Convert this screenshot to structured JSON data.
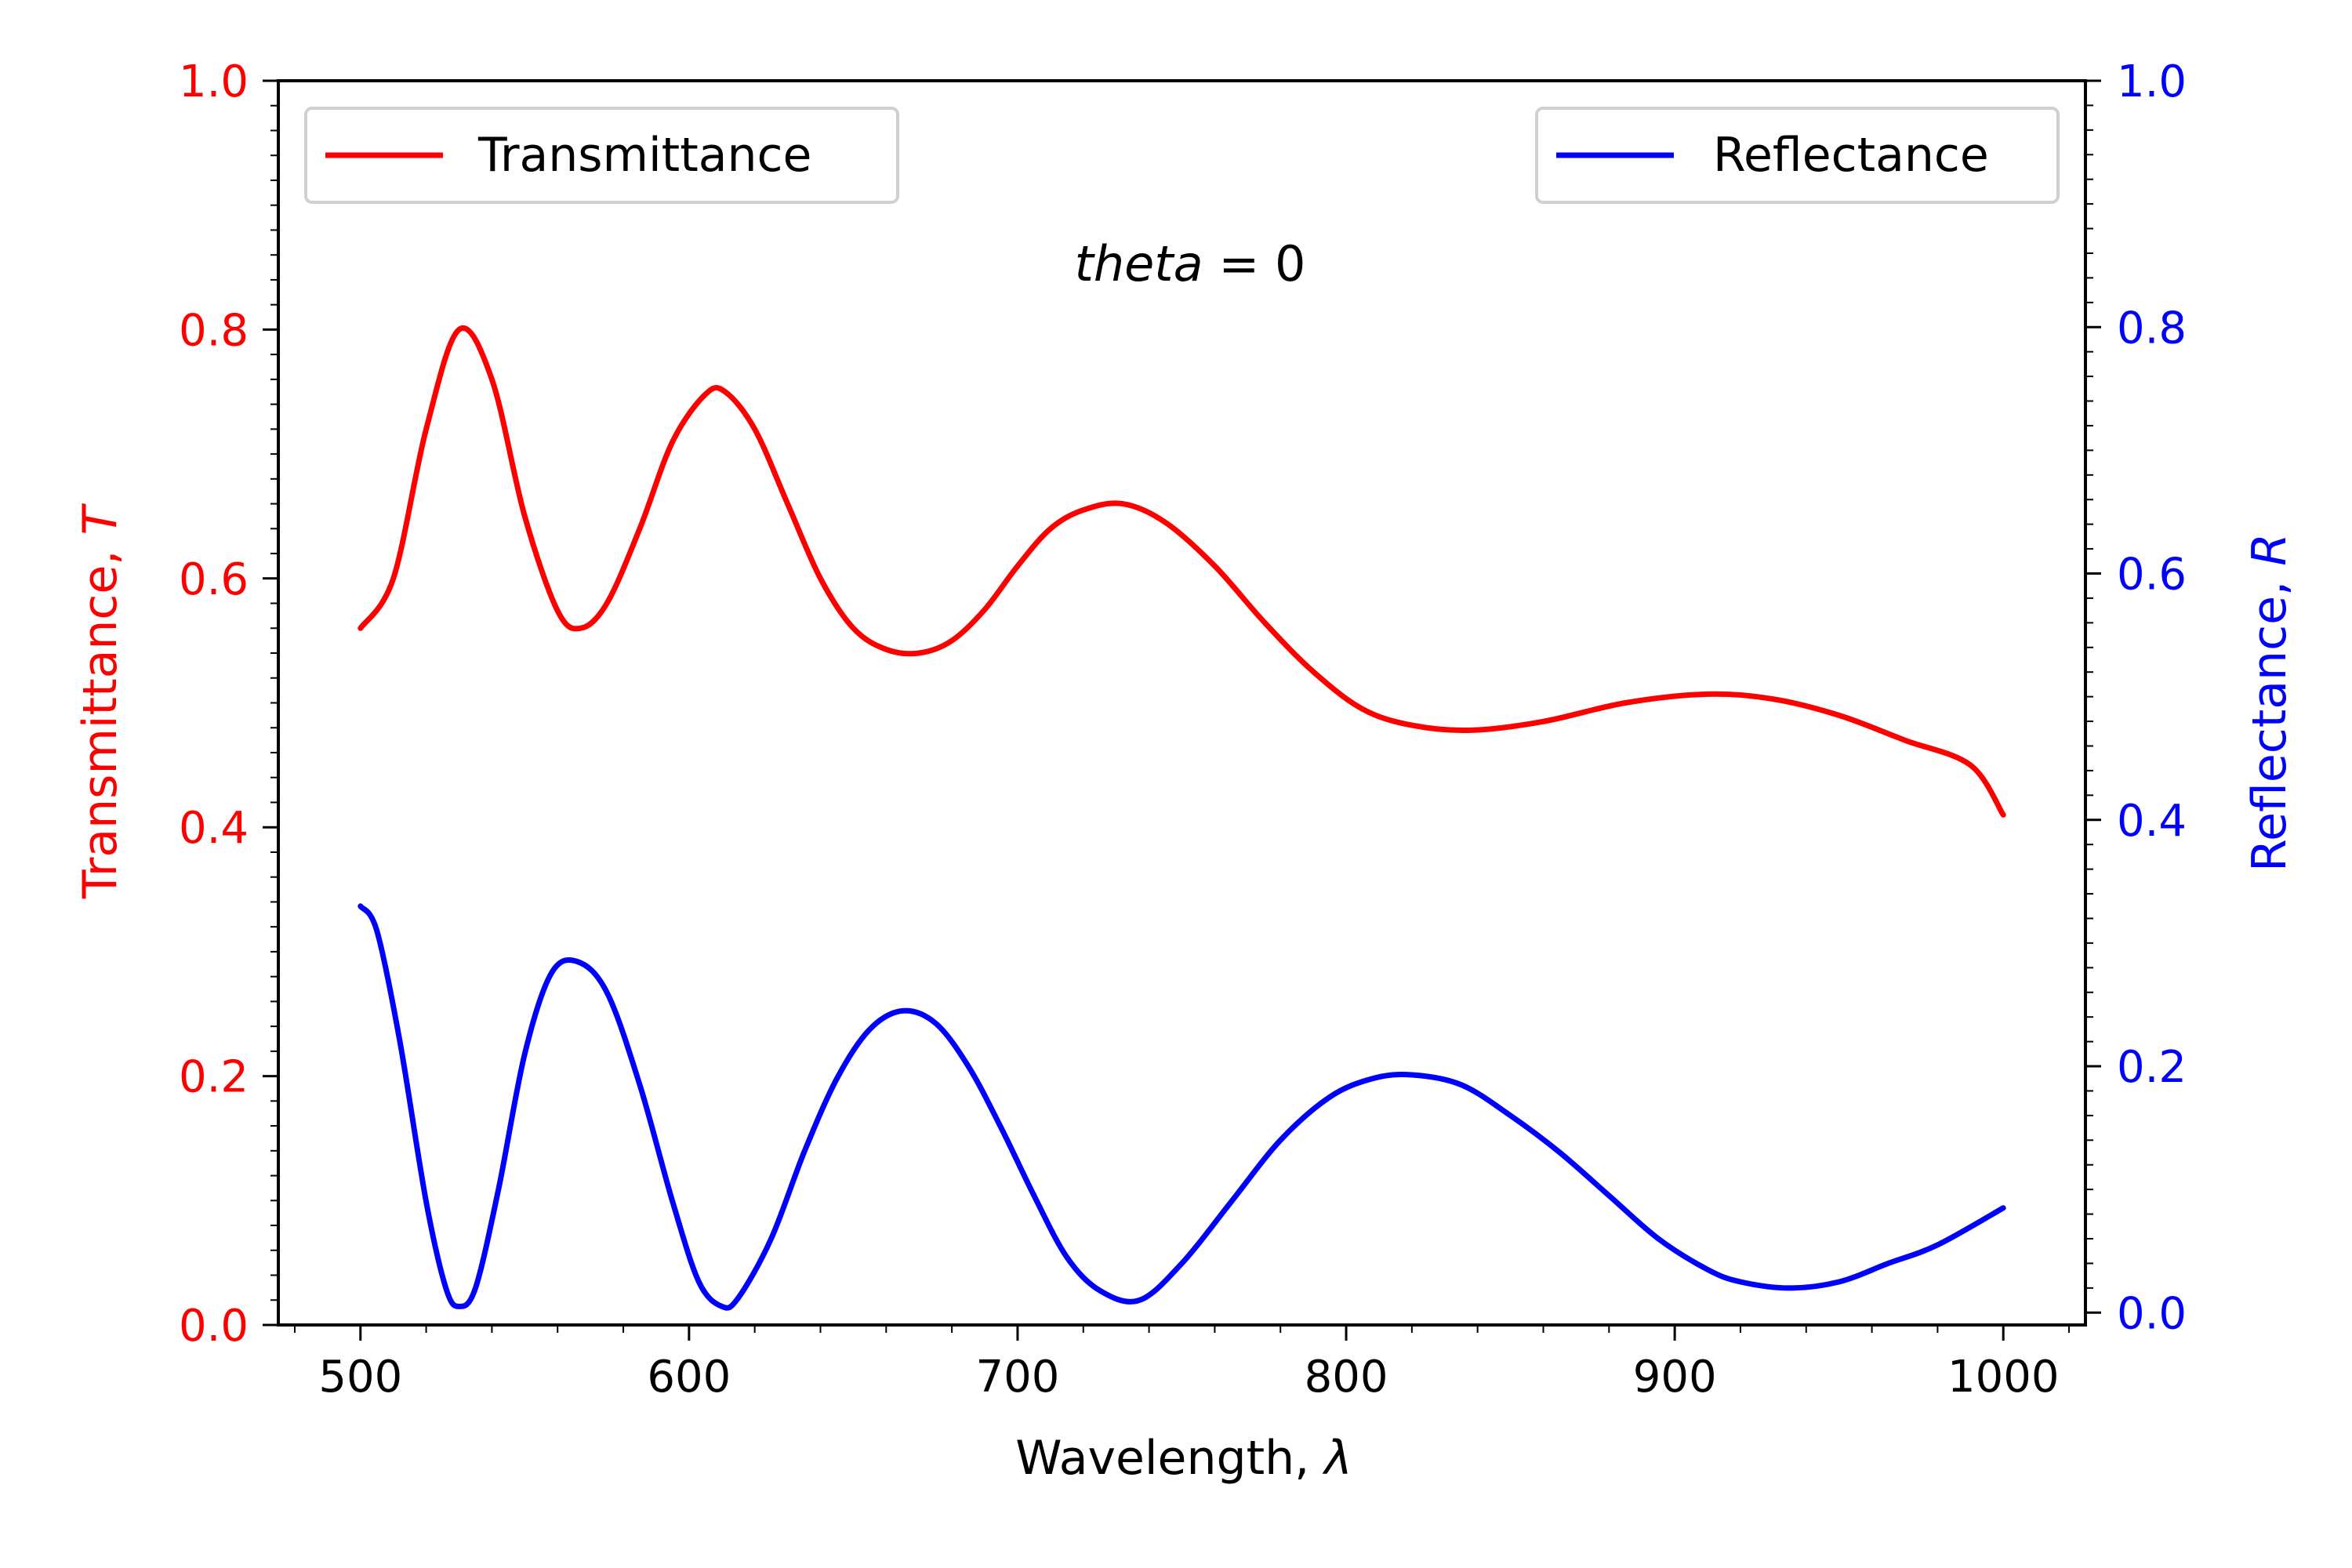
{
  "chart_data": {
    "type": "line",
    "title": "",
    "annotation": {
      "italic": "theta",
      "rest": " = 0"
    },
    "xlabel": {
      "text": "Wavelength, ",
      "symbol": "λ"
    },
    "ylabel_left": {
      "text": "Transmittance, ",
      "symbol": "T",
      "color": "#ff0000"
    },
    "ylabel_right": {
      "text": "Reflectance, ",
      "symbol": "R",
      "color": "#0000ff"
    },
    "xlim": [
      475,
      1025
    ],
    "ylim_left": [
      0.0,
      1.0
    ],
    "ylim_right": [
      -0.01,
      1.0
    ],
    "x_ticks": [
      "500",
      "600",
      "700",
      "800",
      "900",
      "1000"
    ],
    "y_left_ticks": [
      "0.0",
      "0.2",
      "0.4",
      "0.6",
      "0.8",
      "1.0"
    ],
    "y_right_ticks": [
      "0.0",
      "0.2",
      "0.4",
      "0.6",
      "0.8",
      "1.0"
    ],
    "grid": false,
    "series": [
      {
        "name": "Transmittance",
        "axis": "left",
        "color": "#ff0000",
        "legend_position": "top-left",
        "x": [
          500,
          510,
          520,
          530,
          540,
          550,
          560,
          567,
          575,
          585,
          595,
          605,
          611,
          620,
          630,
          640,
          650,
          660,
          670,
          680,
          690,
          700,
          710,
          720,
          732,
          745,
          760,
          775,
          790,
          805,
          820,
          838,
          860,
          885,
          910,
          930,
          950,
          970,
          990,
          1000
        ],
        "y": [
          0.56,
          0.6,
          0.72,
          0.8,
          0.76,
          0.65,
          0.574,
          0.56,
          0.58,
          0.64,
          0.71,
          0.748,
          0.75,
          0.72,
          0.66,
          0.6,
          0.56,
          0.543,
          0.54,
          0.55,
          0.575,
          0.61,
          0.64,
          0.655,
          0.66,
          0.645,
          0.61,
          0.565,
          0.525,
          0.495,
          0.482,
          0.478,
          0.485,
          0.5,
          0.507,
          0.503,
          0.49,
          0.47,
          0.45,
          0.41
        ]
      },
      {
        "name": "Reflectance",
        "axis": "right",
        "color": "#0000ff",
        "legend_position": "top-right",
        "x": [
          500,
          505,
          512,
          520,
          526,
          530,
          535,
          542,
          550,
          558,
          566,
          575,
          585,
          595,
          603,
          610,
          615,
          625,
          635,
          645,
          655,
          665,
          675,
          685,
          695,
          705,
          715,
          725,
          737,
          750,
          765,
          780,
          795,
          808,
          820,
          835,
          850,
          865,
          880,
          895,
          910,
          920,
          935,
          950,
          965,
          980,
          1000
        ],
        "y": [
          0.33,
          0.31,
          0.22,
          0.09,
          0.02,
          0.005,
          0.02,
          0.1,
          0.21,
          0.275,
          0.285,
          0.26,
          0.185,
          0.09,
          0.025,
          0.005,
          0.012,
          0.06,
          0.13,
          0.19,
          0.23,
          0.245,
          0.235,
          0.2,
          0.15,
          0.095,
          0.045,
          0.018,
          0.01,
          0.04,
          0.09,
          0.14,
          0.175,
          0.19,
          0.193,
          0.185,
          0.16,
          0.13,
          0.095,
          0.06,
          0.035,
          0.025,
          0.02,
          0.025,
          0.04,
          0.055,
          0.085
        ]
      }
    ]
  }
}
